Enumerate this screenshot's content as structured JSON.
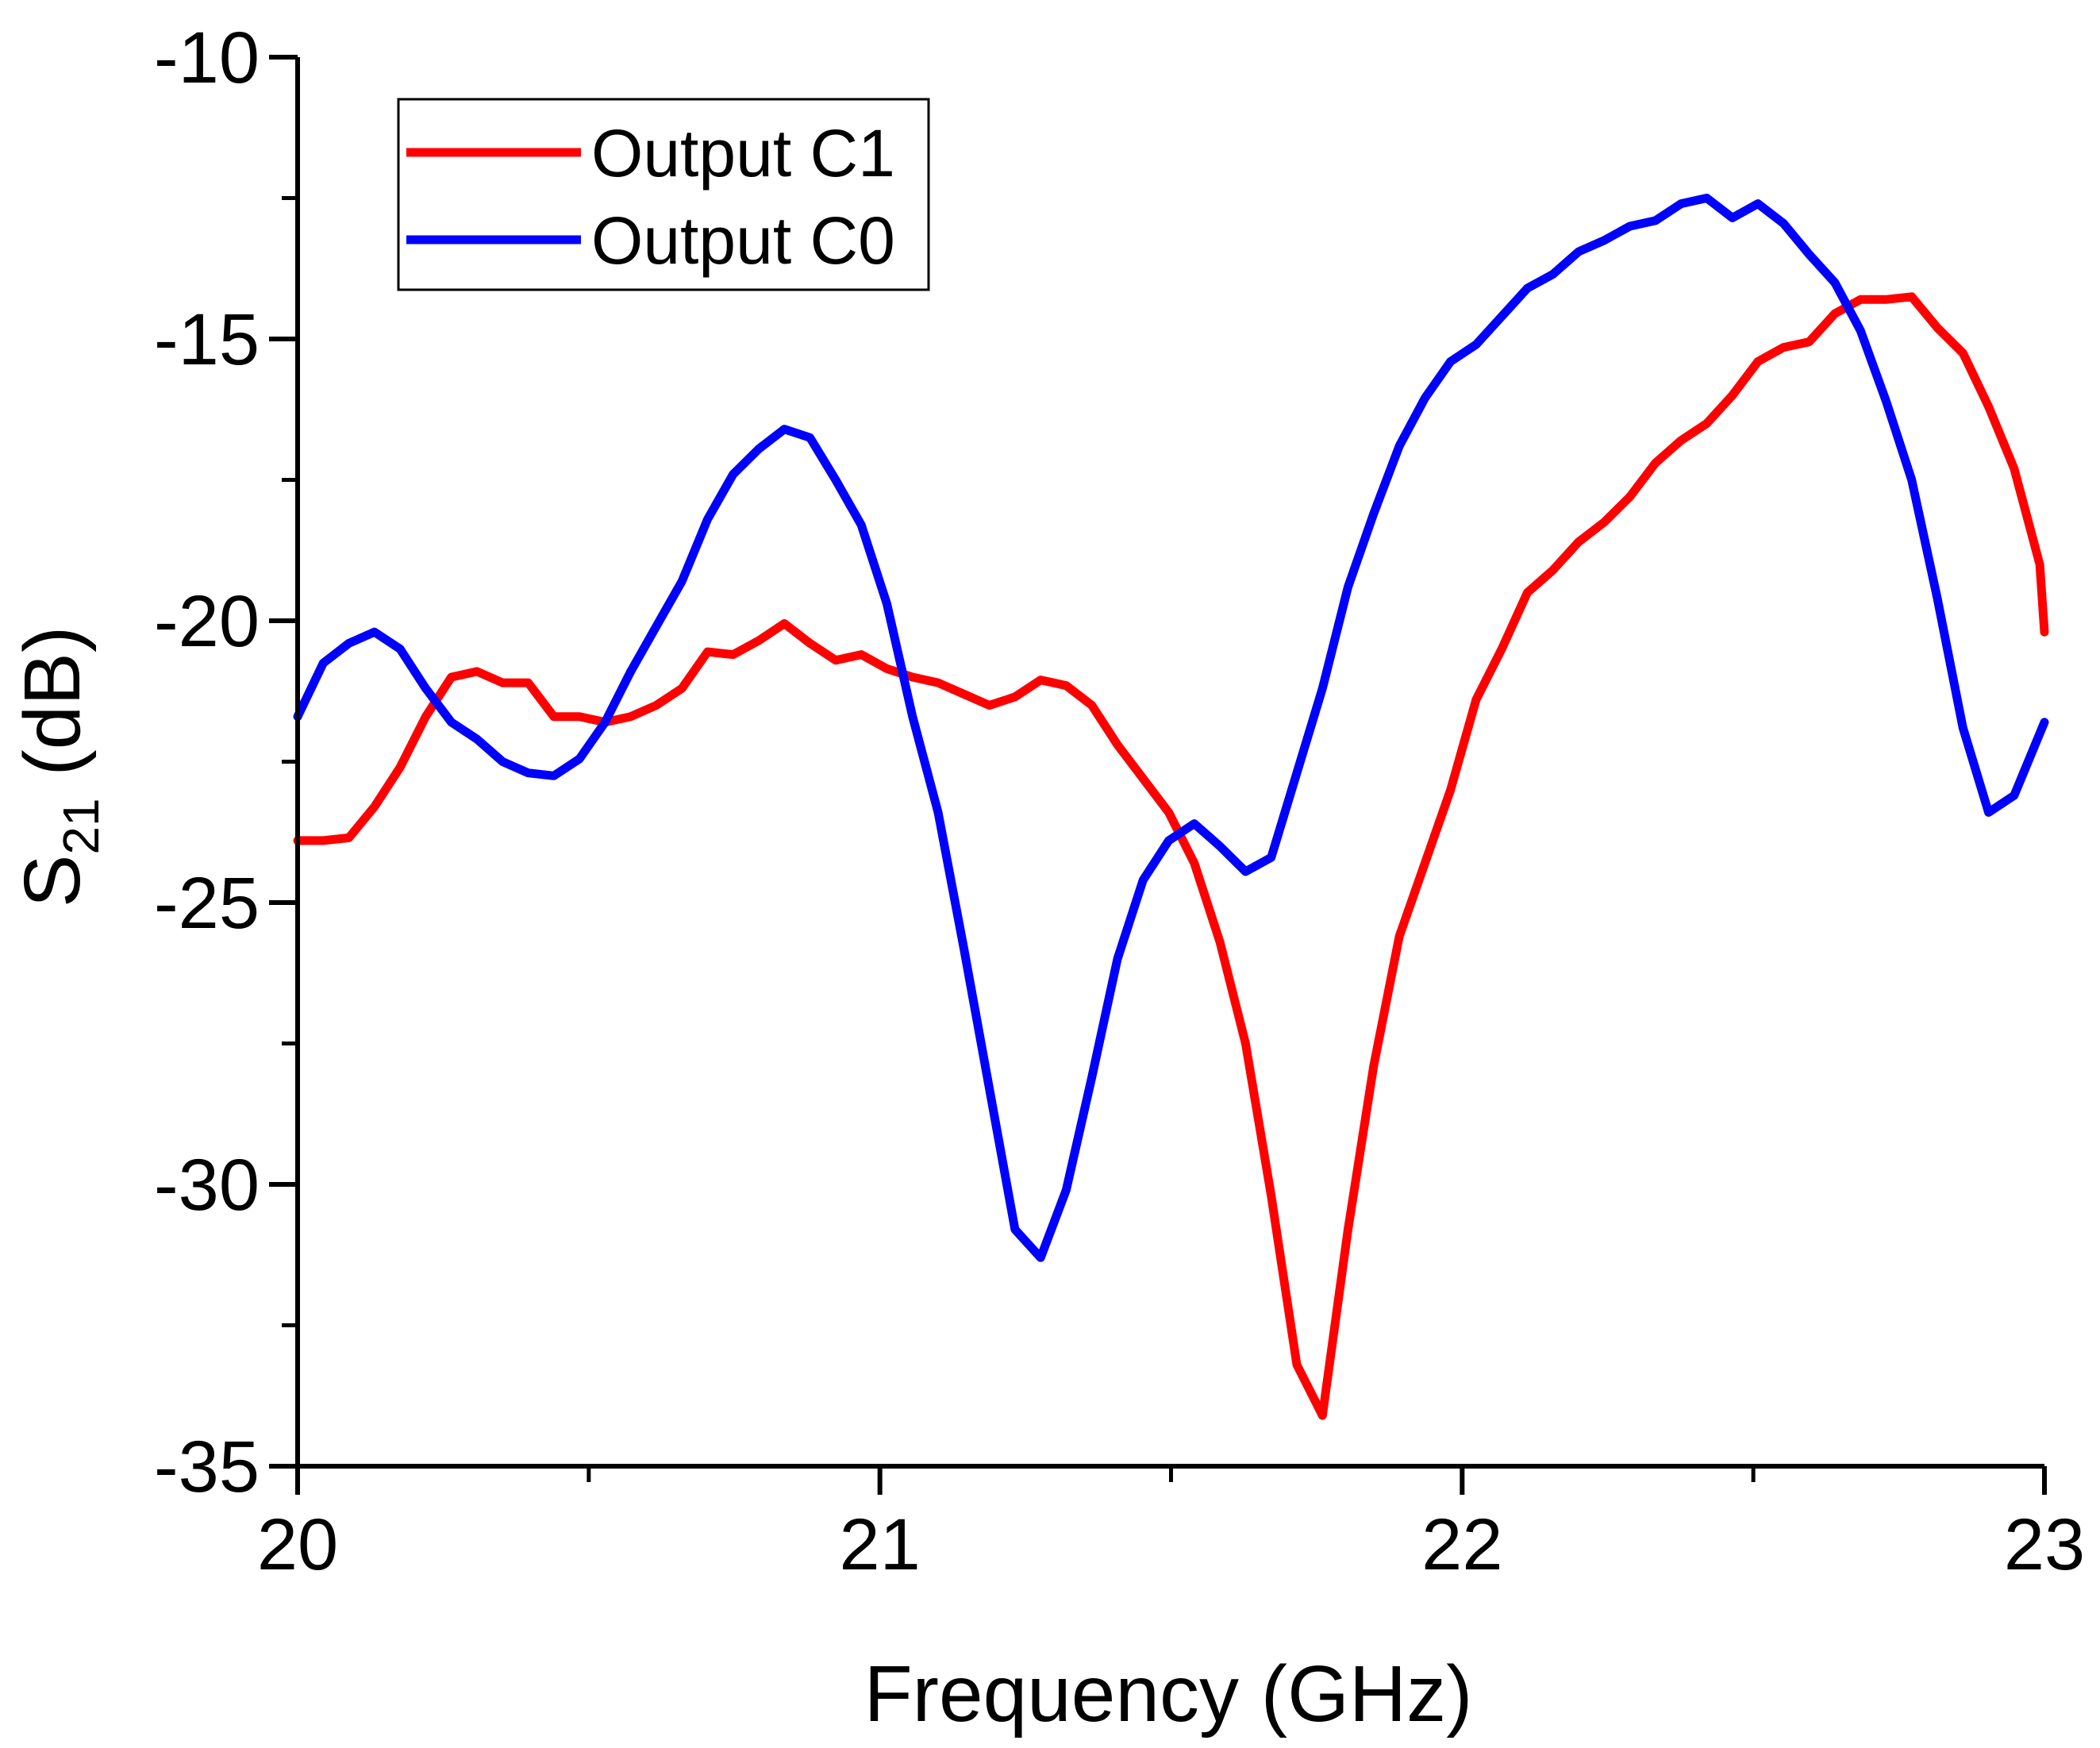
{
  "chart_data": {
    "type": "line",
    "xlabel": "Frequency (GHz)",
    "ylabel_main": "S",
    "ylabel_sub": "21",
    "ylabel_tail": " (dB)",
    "xlim": [
      20,
      23
    ],
    "ylim": [
      -35,
      -10
    ],
    "xticks": [
      20,
      21,
      22,
      23
    ],
    "xtick_labels": [
      "20",
      "21",
      "22",
      "23"
    ],
    "yticks": [
      -10,
      -15,
      -20,
      -25,
      -30,
      -35
    ],
    "ytick_labels": [
      "-10",
      "-15",
      "-20",
      "-25",
      "-30",
      "-35"
    ],
    "legend_position": "top-left",
    "series": [
      {
        "name": "Output C1",
        "color": "#ff0000",
        "x": [
          20.0,
          20.044,
          20.088,
          20.132,
          20.176,
          20.22,
          20.264,
          20.308,
          20.352,
          20.396,
          20.44,
          20.484,
          20.528,
          20.572,
          20.616,
          20.66,
          20.704,
          20.748,
          20.792,
          20.836,
          20.88,
          20.924,
          20.968,
          21.012,
          21.056,
          21.1,
          21.144,
          21.188,
          21.232,
          21.276,
          21.32,
          21.364,
          21.408,
          21.452,
          21.496,
          21.54,
          21.584,
          21.628,
          21.672,
          21.716,
          21.76,
          21.804,
          21.848,
          21.892,
          21.936,
          21.98,
          22.024,
          22.068,
          22.112,
          22.156,
          22.2,
          22.244,
          22.288,
          22.332,
          22.376,
          22.42,
          22.464,
          22.508,
          22.552,
          22.596,
          22.64,
          22.684,
          22.728,
          22.772,
          22.816,
          22.86,
          22.904,
          22.948,
          22.992,
          23.0
        ],
        "y": [
          -23.9,
          -23.9,
          -23.85,
          -23.3,
          -22.6,
          -21.7,
          -21.0,
          -20.9,
          -21.1,
          -21.1,
          -21.7,
          -21.7,
          -21.8,
          -21.7,
          -21.5,
          -21.2,
          -20.55,
          -20.6,
          -20.35,
          -20.05,
          -20.4,
          -20.7,
          -20.6,
          -20.85,
          -21.0,
          -21.1,
          -21.3,
          -21.5,
          -21.35,
          -21.05,
          -21.15,
          -21.5,
          -22.2,
          -22.8,
          -23.4,
          -24.3,
          -25.7,
          -27.5,
          -30.2,
          -33.2,
          -34.1,
          -30.8,
          -27.9,
          -25.6,
          -24.3,
          -23.0,
          -21.4,
          -20.5,
          -19.5,
          -19.1,
          -18.6,
          -18.25,
          -17.8,
          -17.2,
          -16.8,
          -16.5,
          -16.0,
          -15.4,
          -15.15,
          -15.05,
          -14.55,
          -14.3,
          -14.3,
          -14.25,
          -14.8,
          -15.25,
          -16.2,
          -17.3,
          -19.0,
          -20.2
        ]
      },
      {
        "name": "Output C0",
        "color": "#0000ff",
        "x": [
          20.0,
          20.044,
          20.088,
          20.132,
          20.176,
          20.22,
          20.264,
          20.308,
          20.352,
          20.396,
          20.44,
          20.484,
          20.528,
          20.572,
          20.616,
          20.66,
          20.704,
          20.748,
          20.792,
          20.836,
          20.88,
          20.924,
          20.968,
          21.012,
          21.056,
          21.1,
          21.144,
          21.188,
          21.232,
          21.276,
          21.32,
          21.364,
          21.408,
          21.452,
          21.496,
          21.54,
          21.584,
          21.628,
          21.672,
          21.716,
          21.76,
          21.804,
          21.848,
          21.892,
          21.936,
          21.98,
          22.024,
          22.068,
          22.112,
          22.156,
          22.2,
          22.244,
          22.288,
          22.332,
          22.376,
          22.42,
          22.464,
          22.508,
          22.552,
          22.596,
          22.64,
          22.684,
          22.728,
          22.772,
          22.816,
          22.86,
          22.904,
          22.948,
          22.992,
          23.0
        ],
        "y": [
          -21.7,
          -20.75,
          -20.4,
          -20.2,
          -20.5,
          -21.2,
          -21.8,
          -22.1,
          -22.5,
          -22.7,
          -22.75,
          -22.45,
          -21.8,
          -20.9,
          -20.1,
          -19.3,
          -18.2,
          -17.4,
          -16.95,
          -16.6,
          -16.75,
          -17.5,
          -18.3,
          -19.7,
          -21.7,
          -23.4,
          -25.8,
          -28.3,
          -30.8,
          -31.3,
          -30.1,
          -28.1,
          -26.0,
          -24.6,
          -23.9,
          -23.6,
          -24.0,
          -24.45,
          -24.2,
          -22.7,
          -21.2,
          -19.4,
          -18.1,
          -16.9,
          -16.05,
          -15.4,
          -15.1,
          -14.6,
          -14.1,
          -13.85,
          -13.45,
          -13.25,
          -13.0,
          -12.9,
          -12.6,
          -12.5,
          -12.85,
          -12.6,
          -12.95,
          -13.5,
          -14.0,
          -14.85,
          -16.1,
          -17.5,
          -19.6,
          -21.9,
          -23.4,
          -23.1,
          -22.0,
          -21.8
        ]
      }
    ]
  }
}
